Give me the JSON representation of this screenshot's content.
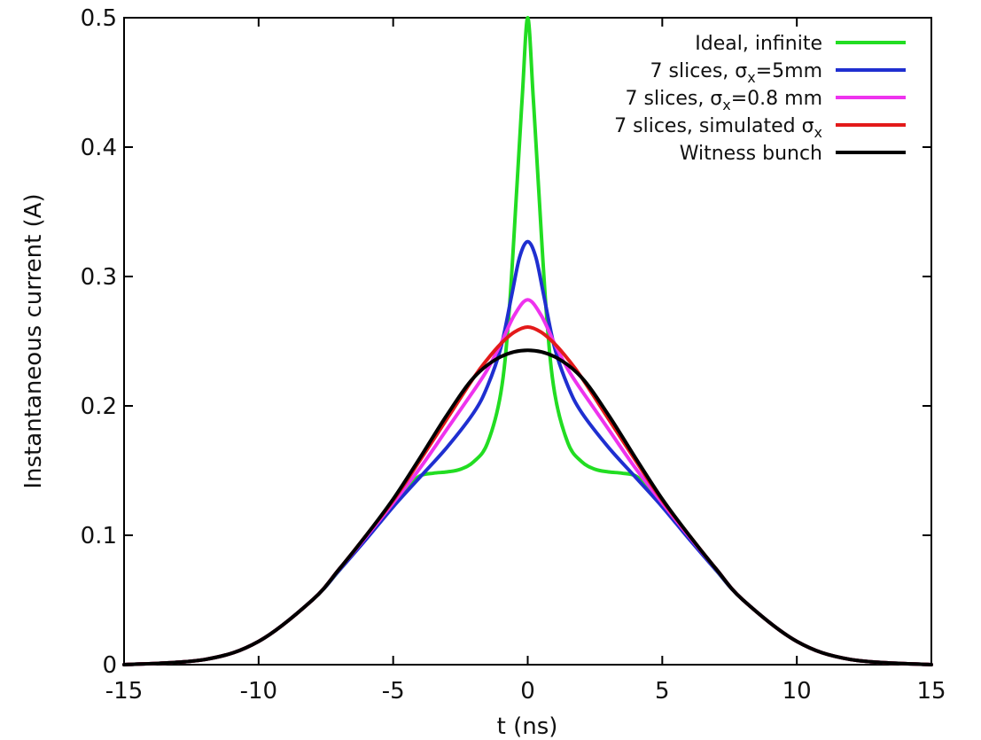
{
  "chart_data": {
    "type": "line",
    "xlabel": "t (ns)",
    "ylabel": "Instantaneous current (A)",
    "xlim": [
      -15,
      15
    ],
    "ylim": [
      0,
      0.5
    ],
    "x_ticks": [
      -15,
      -10,
      -5,
      0,
      5,
      10,
      15
    ],
    "y_ticks": [
      0,
      0.1,
      0.2,
      0.3,
      0.4,
      0.5
    ],
    "x_tick_labels": [
      "-15",
      "-10",
      "-5",
      "0",
      "5",
      "10",
      "15"
    ],
    "y_tick_labels": [
      "0",
      "0.1",
      "0.2",
      "0.3",
      "0.4",
      "0.5"
    ],
    "grid": false,
    "legend_position": "top-right",
    "series": [
      {
        "name": "Ideal, infinite",
        "legend_main": "Ideal, infinite",
        "legend_sub": "",
        "legend_tail": "",
        "color": "#22dd22",
        "points": [
          [
            -15,
            0.0
          ],
          [
            -12,
            0.004
          ],
          [
            -10,
            0.018
          ],
          [
            -8,
            0.05
          ],
          [
            -7,
            0.073
          ],
          [
            -6,
            0.098
          ],
          [
            -5,
            0.124
          ],
          [
            -4.5,
            0.137
          ],
          [
            -4,
            0.146
          ],
          [
            -3.5,
            0.148
          ],
          [
            -3,
            0.149
          ],
          [
            -2.5,
            0.151
          ],
          [
            -2,
            0.157
          ],
          [
            -1.5,
            0.171
          ],
          [
            -1,
            0.21
          ],
          [
            -0.7,
            0.27
          ],
          [
            -0.4,
            0.37
          ],
          [
            -0.2,
            0.44
          ],
          [
            0,
            0.5
          ],
          [
            0.2,
            0.44
          ],
          [
            0.4,
            0.37
          ],
          [
            0.7,
            0.27
          ],
          [
            1,
            0.21
          ],
          [
            1.5,
            0.171
          ],
          [
            2,
            0.157
          ],
          [
            2.5,
            0.151
          ],
          [
            3,
            0.149
          ],
          [
            3.5,
            0.148
          ],
          [
            4,
            0.146
          ],
          [
            4.5,
            0.137
          ],
          [
            5,
            0.124
          ],
          [
            6,
            0.098
          ],
          [
            7,
            0.073
          ],
          [
            8,
            0.05
          ],
          [
            10,
            0.018
          ],
          [
            12,
            0.004
          ],
          [
            15,
            0.0
          ]
        ]
      },
      {
        "name": "7 slices, σx=5mm",
        "legend_main": "7 slices, σ",
        "legend_sub": "x",
        "legend_tail": "=5mm",
        "color": "#1f2fd0",
        "points": [
          [
            -15,
            0.0
          ],
          [
            -12,
            0.004
          ],
          [
            -10,
            0.018
          ],
          [
            -8,
            0.05
          ],
          [
            -7,
            0.073
          ],
          [
            -6,
            0.097
          ],
          [
            -5,
            0.122
          ],
          [
            -4,
            0.145
          ],
          [
            -3,
            0.168
          ],
          [
            -2,
            0.195
          ],
          [
            -1.5,
            0.215
          ],
          [
            -1,
            0.245
          ],
          [
            -0.6,
            0.285
          ],
          [
            -0.3,
            0.315
          ],
          [
            0,
            0.327
          ],
          [
            0.3,
            0.315
          ],
          [
            0.6,
            0.285
          ],
          [
            1,
            0.245
          ],
          [
            1.5,
            0.215
          ],
          [
            2,
            0.195
          ],
          [
            3,
            0.168
          ],
          [
            4,
            0.145
          ],
          [
            5,
            0.122
          ],
          [
            6,
            0.097
          ],
          [
            7,
            0.073
          ],
          [
            8,
            0.05
          ],
          [
            10,
            0.018
          ],
          [
            12,
            0.004
          ],
          [
            15,
            0.0
          ]
        ]
      },
      {
        "name": "7 slices, σx=0.8 mm",
        "legend_main": "7 slices, σ",
        "legend_sub": "x",
        "legend_tail": "=0.8 mm",
        "color": "#ee33ee",
        "points": [
          [
            -15,
            0.0
          ],
          [
            -12,
            0.004
          ],
          [
            -10,
            0.018
          ],
          [
            -8,
            0.05
          ],
          [
            -7,
            0.074
          ],
          [
            -6,
            0.099
          ],
          [
            -5,
            0.125
          ],
          [
            -4,
            0.152
          ],
          [
            -3,
            0.182
          ],
          [
            -2,
            0.212
          ],
          [
            -1.5,
            0.228
          ],
          [
            -1,
            0.248
          ],
          [
            -0.5,
            0.27
          ],
          [
            0,
            0.282
          ],
          [
            0.5,
            0.27
          ],
          [
            1,
            0.248
          ],
          [
            1.5,
            0.228
          ],
          [
            2,
            0.212
          ],
          [
            3,
            0.182
          ],
          [
            4,
            0.152
          ],
          [
            5,
            0.125
          ],
          [
            6,
            0.099
          ],
          [
            7,
            0.074
          ],
          [
            8,
            0.05
          ],
          [
            10,
            0.018
          ],
          [
            12,
            0.004
          ],
          [
            15,
            0.0
          ]
        ]
      },
      {
        "name": "7 slices, simulated σx",
        "legend_main": "7 slices, simulated σ",
        "legend_sub": "x",
        "legend_tail": "",
        "color": "#e31a1a",
        "points": [
          [
            -15,
            0.0
          ],
          [
            -12,
            0.004
          ],
          [
            -10,
            0.018
          ],
          [
            -8,
            0.05
          ],
          [
            -7,
            0.074
          ],
          [
            -6,
            0.1
          ],
          [
            -5,
            0.127
          ],
          [
            -4,
            0.158
          ],
          [
            -3,
            0.19
          ],
          [
            -2,
            0.222
          ],
          [
            -1.5,
            0.236
          ],
          [
            -1,
            0.248
          ],
          [
            -0.5,
            0.257
          ],
          [
            0,
            0.261
          ],
          [
            0.5,
            0.257
          ],
          [
            1,
            0.248
          ],
          [
            1.5,
            0.236
          ],
          [
            2,
            0.222
          ],
          [
            3,
            0.19
          ],
          [
            4,
            0.158
          ],
          [
            5,
            0.127
          ],
          [
            6,
            0.1
          ],
          [
            7,
            0.074
          ],
          [
            8,
            0.05
          ],
          [
            10,
            0.018
          ],
          [
            12,
            0.004
          ],
          [
            15,
            0.0
          ]
        ]
      },
      {
        "name": "Witness bunch",
        "legend_main": "Witness bunch",
        "legend_sub": "",
        "legend_tail": "",
        "color": "#000000",
        "points": [
          [
            -15,
            0.0
          ],
          [
            -12,
            0.004
          ],
          [
            -10,
            0.018
          ],
          [
            -8,
            0.05
          ],
          [
            -7,
            0.074
          ],
          [
            -6,
            0.1
          ],
          [
            -5,
            0.128
          ],
          [
            -4,
            0.16
          ],
          [
            -3,
            0.193
          ],
          [
            -2,
            0.222
          ],
          [
            -1,
            0.238
          ],
          [
            0,
            0.243
          ],
          [
            1,
            0.238
          ],
          [
            2,
            0.222
          ],
          [
            3,
            0.193
          ],
          [
            4,
            0.16
          ],
          [
            5,
            0.128
          ],
          [
            6,
            0.1
          ],
          [
            7,
            0.074
          ],
          [
            8,
            0.05
          ],
          [
            10,
            0.018
          ],
          [
            12,
            0.004
          ],
          [
            15,
            0.0
          ]
        ]
      }
    ]
  }
}
